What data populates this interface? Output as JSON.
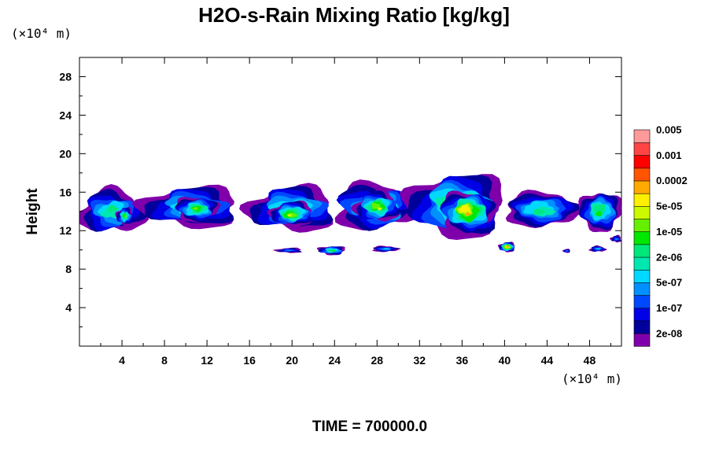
{
  "chart_data": {
    "type": "heatmap",
    "title": "H2O-s-Rain Mixing Ratio [kg/kg]",
    "ylabel": "Height",
    "xunit": "(×10⁴ m)",
    "yunit": "(×10⁴ m)",
    "x_ticks": [
      "4",
      "8",
      "12",
      "16",
      "20",
      "24",
      "28",
      "32",
      "36",
      "40",
      "44",
      "48"
    ],
    "y_ticks": [
      "4",
      "8",
      "12",
      "16",
      "20",
      "24",
      "28"
    ],
    "xlim": [
      0,
      51
    ],
    "ylim": [
      0,
      30
    ],
    "footer": "TIME = 700000.0",
    "colorbar": {
      "colors": [
        "#7f00aa",
        "#00009a",
        "#0000e6",
        "#0048ff",
        "#0090ff",
        "#00d8ff",
        "#00e8b0",
        "#00e87a",
        "#00e800",
        "#66f000",
        "#ccf800",
        "#fff000",
        "#ffaa00",
        "#ff5500",
        "#ff0000",
        "#ff4444",
        "#ff9a9a"
      ],
      "labels": [
        "2e-08",
        "1e-07",
        "5e-07",
        "2e-06",
        "1e-05",
        "5e-05",
        "0.0002",
        "0.001",
        "0.005"
      ]
    },
    "regions": [
      {
        "x": [
          0,
          6
        ],
        "y": [
          11.8,
          16.2
        ],
        "peak": 7
      },
      {
        "x": [
          3.5,
          5
        ],
        "y": [
          12.6,
          14.4
        ],
        "peak": 9
      },
      {
        "x": [
          6,
          15
        ],
        "y": [
          12.4,
          16.5
        ],
        "peak": 7
      },
      {
        "x": [
          9,
          13
        ],
        "y": [
          13,
          15.5
        ],
        "peak": 9
      },
      {
        "x": [
          16,
          24
        ],
        "y": [
          12,
          16.5
        ],
        "peak": 8
      },
      {
        "x": [
          18,
          22
        ],
        "y": [
          12.5,
          15
        ],
        "peak": 10
      },
      {
        "x": [
          24,
          32
        ],
        "y": [
          12.2,
          16.8
        ],
        "peak": 8
      },
      {
        "x": [
          26,
          30
        ],
        "y": [
          13,
          16
        ],
        "peak": 10
      },
      {
        "x": [
          31,
          40
        ],
        "y": [
          11.5,
          17.8
        ],
        "peak": 9
      },
      {
        "x": [
          34,
          39
        ],
        "y": [
          12,
          16
        ],
        "peak": 12
      },
      {
        "x": [
          40,
          47
        ],
        "y": [
          12.4,
          16
        ],
        "peak": 7
      },
      {
        "x": [
          47,
          51
        ],
        "y": [
          12,
          16
        ],
        "peak": 8
      },
      {
        "x": [
          18.5,
          21
        ],
        "y": [
          9.7,
          10.2
        ],
        "peak": 4
      },
      {
        "x": [
          22.5,
          25
        ],
        "y": [
          9.5,
          10.4
        ],
        "peak": 8
      },
      {
        "x": [
          27.5,
          30
        ],
        "y": [
          9.8,
          10.4
        ],
        "peak": 5
      },
      {
        "x": [
          39.5,
          41
        ],
        "y": [
          9.8,
          10.8
        ],
        "peak": 13
      },
      {
        "x": [
          45.5,
          46.2
        ],
        "y": [
          9.7,
          10.1
        ],
        "peak": 4
      },
      {
        "x": [
          48,
          49.5
        ],
        "y": [
          9.8,
          10.4
        ],
        "peak": 5
      },
      {
        "x": [
          50,
          51
        ],
        "y": [
          10.8,
          11.5
        ],
        "peak": 4
      }
    ]
  }
}
